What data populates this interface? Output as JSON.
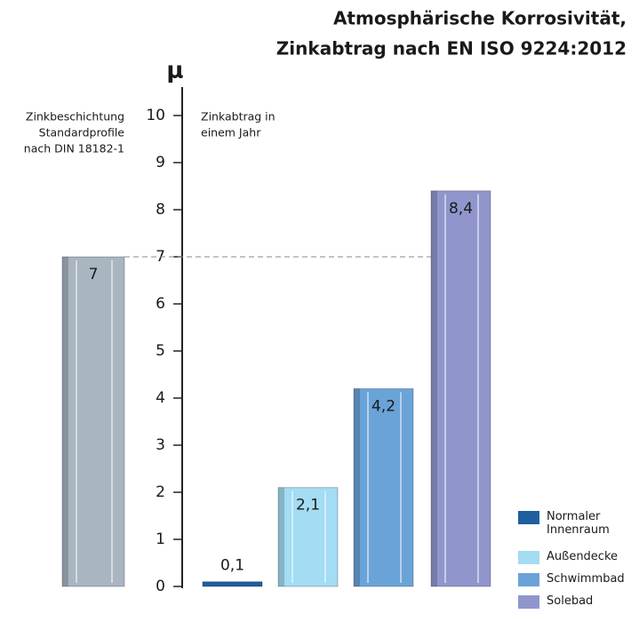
{
  "chart_data": {
    "type": "bar",
    "title": "Atmosphärische Korrosivität,",
    "subtitle": "Zinkabtrag nach EN ISO 9224:2012",
    "y_label": "μ",
    "annotations": [
      {
        "lines": [
          "Zinkbeschichtung",
          "Standardprofile",
          "nach DIN 18182-1"
        ]
      },
      {
        "lines": [
          "Zinkabtrag in",
          "einem Jahr"
        ]
      }
    ],
    "reference": {
      "value": 7,
      "value_label": "7",
      "color": "#a9b5c1"
    },
    "categories": [
      "Normaler Innenraum",
      "Außendecke",
      "Schwimmbad",
      "Solebad"
    ],
    "values": [
      0.1,
      2.1,
      4.2,
      8.4
    ],
    "value_labels": [
      "0,1",
      "2,1",
      "4,2",
      "8,4"
    ],
    "colors": [
      "#1f5f9e",
      "#a3dcf3",
      "#6aa3d8",
      "#9096cc"
    ],
    "ylim": [
      0,
      10
    ],
    "yticks": [
      0,
      1,
      2,
      3,
      4,
      5,
      6,
      7,
      8,
      9,
      10
    ],
    "legend": "bottom-right"
  }
}
